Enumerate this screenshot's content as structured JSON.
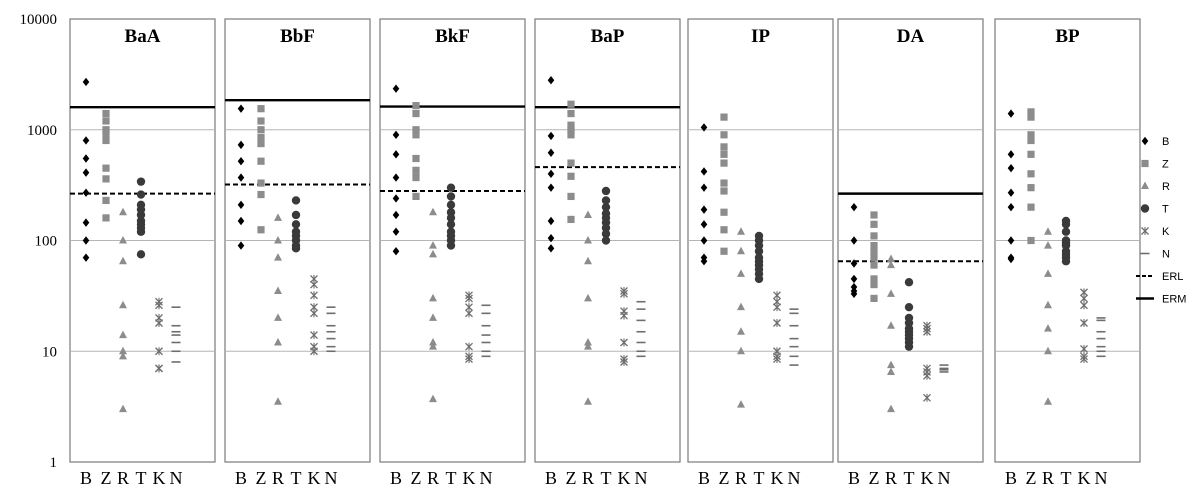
{
  "chart_data": {
    "type": "scatter",
    "scale": "log",
    "ylim": [
      1,
      10000
    ],
    "y_ticks": [
      "1",
      "10",
      "100",
      "1000",
      "10000"
    ],
    "categories": [
      "B",
      "Z",
      "R",
      "T",
      "K",
      "N"
    ],
    "grid": true,
    "legend_position": "right",
    "legend": [
      {
        "key": "B",
        "label": "B",
        "marker": "diamond",
        "color": "#000000"
      },
      {
        "key": "Z",
        "label": "Z",
        "marker": "square",
        "color": "#8c8c8c"
      },
      {
        "key": "R",
        "label": "R",
        "marker": "triangle",
        "color": "#8c8c8c"
      },
      {
        "key": "T",
        "label": "T",
        "marker": "circle",
        "color": "#3a3a3a"
      },
      {
        "key": "K",
        "label": "K",
        "marker": "star",
        "color": "#6e6e6e"
      },
      {
        "key": "N",
        "label": "N",
        "marker": "dash",
        "color": "#6e6e6e"
      },
      {
        "key": "ERL",
        "label": "ERL",
        "marker": "dashed-line",
        "color": "#000000"
      },
      {
        "key": "ERM",
        "label": "ERM",
        "marker": "solid-line",
        "color": "#000000"
      }
    ],
    "panels": [
      {
        "title": "BaA",
        "erl": 265,
        "erm": 1600,
        "series": {
          "B": [
            2700,
            800,
            550,
            410,
            270,
            145,
            100,
            70
          ],
          "Z": [
            1400,
            1200,
            1000,
            900,
            800,
            450,
            360,
            230,
            160
          ],
          "R": [
            180,
            100,
            65,
            26,
            14,
            10,
            9,
            3
          ],
          "T": [
            340,
            260,
            210,
            190,
            170,
            150,
            140,
            130,
            120,
            75
          ],
          "K": [
            28,
            26,
            20,
            18,
            10,
            7,
            7
          ],
          "N": [
            25,
            17,
            15,
            14,
            12,
            10,
            8
          ]
        }
      },
      {
        "title": "BbF",
        "erl": 320,
        "erm": 1850,
        "series": {
          "B": [
            1550,
            730,
            520,
            370,
            210,
            150,
            90
          ],
          "Z": [
            1550,
            1200,
            1000,
            850,
            750,
            520,
            330,
            260,
            125
          ],
          "R": [
            160,
            100,
            70,
            35,
            20,
            12,
            3.5
          ],
          "T": [
            230,
            170,
            140,
            120,
            110,
            100,
            90,
            85
          ],
          "K": [
            45,
            40,
            32,
            25,
            22,
            14,
            11,
            10
          ],
          "N": [
            25,
            22,
            17,
            15,
            13,
            11,
            10
          ]
        }
      },
      {
        "title": "BkF",
        "erl": 280,
        "erm": 1620,
        "series": {
          "B": [
            2350,
            900,
            600,
            370,
            240,
            170,
            120,
            80
          ],
          "Z": [
            1650,
            1400,
            1000,
            900,
            550,
            430,
            370,
            250
          ],
          "R": [
            180,
            90,
            75,
            30,
            20,
            12,
            11,
            3.7
          ],
          "T": [
            300,
            250,
            210,
            180,
            160,
            140,
            120,
            110,
            100,
            90
          ],
          "K": [
            32,
            30,
            25,
            22,
            11,
            9,
            8.5
          ],
          "N": [
            26,
            22,
            17,
            14,
            12,
            10,
            9
          ]
        }
      },
      {
        "title": "BaP",
        "erl": 460,
        "erm": 1600,
        "series": {
          "B": [
            2800,
            880,
            620,
            400,
            300,
            150,
            105,
            85
          ],
          "Z": [
            1700,
            1400,
            1100,
            1000,
            900,
            500,
            380,
            250,
            155
          ],
          "R": [
            170,
            100,
            65,
            30,
            12,
            11,
            3.5
          ],
          "T": [
            280,
            230,
            200,
            175,
            160,
            145,
            130,
            115,
            100
          ],
          "K": [
            35,
            33,
            23,
            21,
            12,
            8.5,
            8
          ],
          "N": [
            28,
            24,
            19,
            15,
            12,
            10,
            9
          ]
        }
      },
      {
        "title": "IP",
        "erl": null,
        "erm": null,
        "series": {
          "B": [
            1050,
            420,
            300,
            190,
            140,
            100,
            70,
            65
          ],
          "Z": [
            1300,
            900,
            700,
            600,
            500,
            330,
            280,
            180,
            125,
            80
          ],
          "R": [
            120,
            80,
            50,
            25,
            15,
            10,
            3.3
          ],
          "T": [
            110,
            100,
            90,
            80,
            70,
            65,
            60,
            55,
            50,
            45
          ],
          "K": [
            32,
            28,
            25,
            18,
            10,
            9,
            8.5
          ],
          "N": [
            24,
            22,
            17,
            13,
            11,
            9,
            7.5
          ]
        }
      },
      {
        "title": "DA",
        "erl": 65,
        "erm": 265,
        "series": {
          "B": [
            200,
            100,
            62,
            45,
            38,
            35,
            33
          ],
          "Z": [
            170,
            140,
            110,
            90,
            80,
            70,
            60,
            45,
            40,
            30
          ],
          "R": [
            68,
            60,
            33,
            17,
            7.5,
            6.5,
            3
          ],
          "T": [
            42,
            25,
            20,
            18,
            16,
            15,
            14,
            13,
            12,
            11
          ],
          "K": [
            17,
            16,
            15,
            7,
            6.5,
            6,
            3.8
          ],
          "N": [
            7.5,
            7,
            6.8,
            6.5
          ]
        }
      },
      {
        "title": "BP",
        "erl": null,
        "erm": null,
        "series": {
          "B": [
            1400,
            600,
            450,
            270,
            200,
            100,
            70,
            68
          ],
          "Z": [
            1450,
            1300,
            900,
            800,
            600,
            400,
            300,
            200,
            100
          ],
          "R": [
            120,
            90,
            50,
            26,
            16,
            10,
            3.5
          ],
          "T": [
            150,
            140,
            120,
            100,
            95,
            90,
            80,
            75,
            70,
            65
          ],
          "K": [
            34,
            30,
            26,
            18,
            10.5,
            9,
            8.5
          ],
          "N": [
            20,
            19,
            15,
            13,
            11,
            10,
            9
          ]
        }
      }
    ]
  }
}
